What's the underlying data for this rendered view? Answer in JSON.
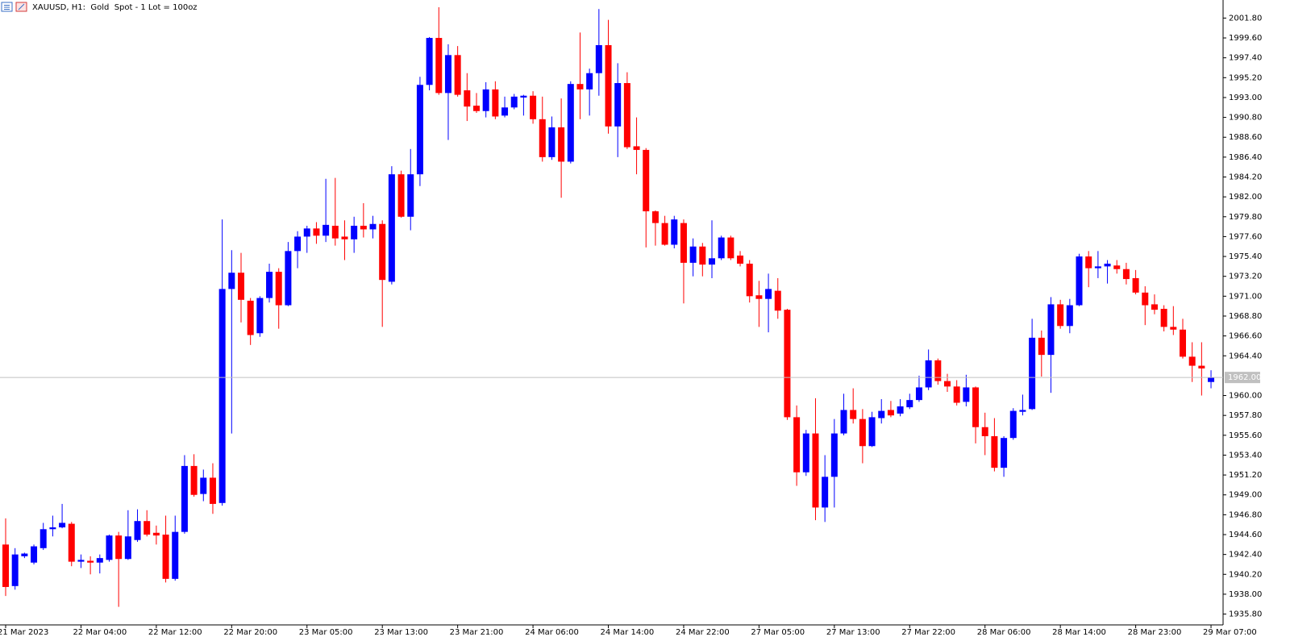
{
  "chart_data": {
    "type": "candlestick",
    "title": "XAUUSD, H1:  Gold  Spot - 1 Lot = 100oz",
    "up_color": "#0000ff",
    "down_color": "#ff0000",
    "grid": false,
    "categories": [
      "21 Mar 2023",
      null,
      null,
      null,
      null,
      null,
      null,
      null,
      "22 Mar 04:00",
      null,
      null,
      null,
      null,
      null,
      null,
      null,
      "22 Mar 12:00",
      null,
      null,
      null,
      null,
      null,
      null,
      null,
      "22 Mar 20:00",
      null,
      null,
      null,
      null,
      null,
      null,
      null,
      "23 Mar 05:00",
      null,
      null,
      null,
      null,
      null,
      null,
      null,
      "23 Mar 13:00",
      null,
      null,
      null,
      null,
      null,
      null,
      null,
      "23 Mar 21:00",
      null,
      null,
      null,
      null,
      null,
      null,
      null,
      "24 Mar 06:00",
      null,
      null,
      null,
      null,
      null,
      null,
      null,
      "24 Mar 14:00",
      null,
      null,
      null,
      null,
      null,
      null,
      null,
      "24 Mar 22:00",
      null,
      null,
      null,
      null,
      null,
      null,
      null,
      "27 Mar 05:00",
      null,
      null,
      null,
      null,
      null,
      null,
      null,
      "27 Mar 13:00",
      null,
      null,
      null,
      null,
      null,
      null,
      null,
      "27 Mar 22:00",
      null,
      null,
      null,
      null,
      null,
      null,
      null,
      "28 Mar 06:00",
      null,
      null,
      null,
      null,
      null,
      null,
      null,
      "28 Mar 14:00",
      null,
      null,
      null,
      null,
      null,
      null,
      null,
      "28 Mar 23:00",
      null,
      null,
      null,
      null,
      null,
      null,
      null,
      "29 Mar 07:00"
    ],
    "open": [
      1943.5,
      1938.9,
      1942.2,
      1941.5,
      1943.1,
      1945.2,
      1945.4,
      1945.8,
      1941.6,
      1941.7,
      1941.5,
      1941.8,
      1944.5,
      1941.9,
      1944.0,
      1946.1,
      1944.8,
      1944.6,
      1939.7,
      1944.9,
      1952.2,
      1949.1,
      1950.9,
      1948.1,
      1971.8,
      1973.6,
      1970.5,
      1966.9,
      1970.8,
      1973.7,
      1970.0,
      1976.0,
      1977.6,
      1978.5,
      1977.7,
      1978.8,
      1977.6,
      1977.3,
      1978.8,
      1978.4,
      1979.0,
      1972.6,
      1984.5,
      1979.8,
      1984.5,
      1994.4,
      1999.6,
      1993.5,
      1997.7,
      1993.8,
      1992.1,
      1991.5,
      1993.9,
      1991.0,
      1991.9,
      1993.0,
      1993.2,
      1990.6,
      1986.4,
      1989.7,
      1985.9,
      1994.5,
      1993.9,
      1995.7,
      1998.8,
      1989.8,
      1994.6,
      1987.6,
      1987.2,
      1980.4,
      1979.1,
      1976.7,
      1979.1,
      1974.7,
      1976.5,
      1974.5,
      1975.2,
      1977.5,
      1975.5,
      1974.6,
      1971.1,
      1970.7,
      1971.6,
      1969.5,
      1957.6,
      1951.5,
      1955.8,
      1947.6,
      1951.0,
      1955.8,
      1958.4,
      1957.4,
      1954.4,
      1957.5,
      1958.4,
      1958.0,
      1958.7,
      1959.5,
      1960.9,
      1963.9,
      1961.6,
      1961.0,
      1959.3,
      1960.9,
      1956.5,
      1955.5,
      1952.0,
      1955.3,
      1958.2,
      1958.5,
      1966.4,
      1964.5,
      1970.1,
      1967.7,
      1970.0,
      1975.4,
      1974.1,
      1974.3,
      1974.4,
      1974.0,
      1973.0,
      1971.4,
      1970.1,
      1969.6,
      1967.6,
      1967.3,
      1964.3,
      1963.3,
      1961.5
    ],
    "close": [
      1938.8,
      1942.4,
      1942.5,
      1943.3,
      1945.2,
      1945.4,
      1945.9,
      1941.6,
      1941.8,
      1941.5,
      1942.0,
      1944.5,
      1941.9,
      1944.4,
      1946.1,
      1944.6,
      1944.5,
      1939.7,
      1944.9,
      1952.2,
      1949.0,
      1950.9,
      1948.0,
      1971.8,
      1973.6,
      1970.6,
      1966.7,
      1970.8,
      1973.7,
      1970.0,
      1976.0,
      1977.6,
      1978.5,
      1977.7,
      1978.9,
      1977.4,
      1977.3,
      1978.8,
      1978.4,
      1979.0,
      1972.8,
      1984.5,
      1979.8,
      1984.5,
      1994.4,
      1999.6,
      1993.5,
      1997.7,
      1993.3,
      1992.0,
      1991.5,
      1993.9,
      1990.9,
      1991.9,
      1993.1,
      1993.2,
      1990.6,
      1986.4,
      1989.7,
      1985.9,
      1994.5,
      1993.9,
      1995.7,
      1998.8,
      1989.8,
      1994.6,
      1987.5,
      1987.2,
      1980.4,
      1979.1,
      1976.7,
      1979.5,
      1974.7,
      1976.5,
      1974.5,
      1975.2,
      1977.5,
      1975.2,
      1974.6,
      1971.0,
      1970.7,
      1971.8,
      1969.4,
      1957.6,
      1951.5,
      1955.8,
      1947.6,
      1951.0,
      1955.8,
      1958.4,
      1957.4,
      1954.4,
      1957.6,
      1958.3,
      1957.8,
      1958.8,
      1959.5,
      1960.9,
      1963.9,
      1961.6,
      1961.0,
      1959.2,
      1960.9,
      1956.5,
      1955.5,
      1952.0,
      1955.3,
      1958.3,
      1958.4,
      1966.4,
      1964.5,
      1970.1,
      1967.7,
      1970.0,
      1975.4,
      1974.1,
      1974.3,
      1974.6,
      1974.0,
      1972.9,
      1971.4,
      1970.0,
      1969.5,
      1967.6,
      1967.3,
      1964.3,
      1963.3,
      1963.0,
      1962.0
    ],
    "high": [
      1946.4,
      1943.1,
      1942.6,
      1943.5,
      1945.9,
      1946.7,
      1948.0,
      1946.0,
      1942.4,
      1942.2,
      1942.4,
      1944.6,
      1944.9,
      1947.3,
      1947.4,
      1947.3,
      1945.6,
      1946.7,
      1946.7,
      1953.4,
      1953.5,
      1951.8,
      1952.5,
      1979.5,
      1976.1,
      1975.8,
      1970.8,
      1971.0,
      1974.6,
      1974.1,
      1977.0,
      1978.2,
      1978.8,
      1979.2,
      1984.0,
      1984.1,
      1979.4,
      1979.8,
      1981.3,
      1979.9,
      1979.4,
      1985.4,
      1984.9,
      1987.3,
      1995.3,
      1999.7,
      2003.0,
      1998.9,
      1998.7,
      1995.7,
      1993.5,
      1994.7,
      1994.8,
      1993.1,
      1993.4,
      1993.3,
      1993.7,
      1993.1,
      1990.9,
      1992.9,
      1994.8,
      2000.2,
      1996.2,
      2002.8,
      2001.6,
      1996.8,
      1995.8,
      1990.8,
      1987.4,
      1980.5,
      1979.9,
      1979.9,
      1979.5,
      1977.4,
      1976.9,
      1979.4,
      1977.7,
      1977.7,
      1976.0,
      1975.0,
      1972.7,
      1973.5,
      1973.0,
      1969.6,
      1958.9,
      1956.2,
      1959.7,
      1953.4,
      1957.4,
      1960.2,
      1960.8,
      1958.5,
      1958.2,
      1959.6,
      1959.4,
      1959.6,
      1960.2,
      1962.2,
      1965.1,
      1964.1,
      1962.4,
      1961.7,
      1962.3,
      1961.0,
      1958.1,
      1957.5,
      1955.5,
      1958.6,
      1960.1,
      1968.5,
      1967.2,
      1970.9,
      1970.6,
      1970.7,
      1975.7,
      1976.0,
      1976.0,
      1975.0,
      1975.0,
      1974.7,
      1973.9,
      1972.1,
      1971.2,
      1970.0,
      1969.9,
      1968.5,
      1965.9,
      1965.9,
      1962.8
    ],
    "low": [
      1937.8,
      1938.5,
      1942.0,
      1941.3,
      1942.9,
      1944.4,
      1945.3,
      1941.1,
      1940.9,
      1940.2,
      1940.3,
      1941.6,
      1936.6,
      1941.8,
      1943.8,
      1944.4,
      1943.5,
      1939.3,
      1939.5,
      1944.7,
      1948.8,
      1948.3,
      1946.9,
      1947.8,
      1955.8,
      1968.1,
      1965.6,
      1966.5,
      1970.3,
      1967.4,
      1969.9,
      1974.1,
      1975.8,
      1976.8,
      1977.0,
      1976.6,
      1975.0,
      1975.8,
      1977.5,
      1977.4,
      1967.6,
      1972.3,
      1979.7,
      1978.3,
      1983.2,
      1993.8,
      1993.3,
      1988.3,
      1993.1,
      1990.4,
      1991.3,
      1990.8,
      1990.6,
      1990.8,
      1991.7,
      1991.0,
      1990.1,
      1985.9,
      1986.1,
      1981.9,
      1985.7,
      1990.6,
      1991.0,
      1993.2,
      1989.0,
      1986.4,
      1987.3,
      1984.5,
      1976.4,
      1976.6,
      1976.6,
      1976.3,
      1970.2,
      1973.2,
      1973.2,
      1973.0,
      1975.0,
      1975.0,
      1974.3,
      1970.3,
      1967.6,
      1967.0,
      1968.5,
      1957.3,
      1950.0,
      1951.1,
      1946.2,
      1946.0,
      1947.6,
      1955.6,
      1956.9,
      1952.5,
      1954.3,
      1956.9,
      1957.6,
      1957.7,
      1958.5,
      1959.3,
      1960.6,
      1961.2,
      1960.4,
      1958.9,
      1958.8,
      1954.7,
      1953.4,
      1951.6,
      1951.0,
      1955.1,
      1957.8,
      1958.4,
      1962.1,
      1960.3,
      1967.4,
      1966.9,
      1969.9,
      1972.0,
      1973.0,
      1972.4,
      1973.5,
      1972.3,
      1971.2,
      1967.8,
      1969.0,
      1967.1,
      1966.7,
      1964.1,
      1961.5,
      1960.0,
      1960.8
    ],
    "current_price": {
      "value": 1962,
      "label": "1962.00"
    },
    "ylim": [
      1934.6,
      2003.8
    ],
    "yticks": [
      {
        "value": 2001.8,
        "label": "2001.80"
      },
      {
        "value": 1999.6,
        "label": "1999.60"
      },
      {
        "value": 1997.4,
        "label": "1997.40"
      },
      {
        "value": 1995.2,
        "label": "1995.20"
      },
      {
        "value": 1993,
        "label": "1993.00"
      },
      {
        "value": 1990.8,
        "label": "1990.80"
      },
      {
        "value": 1988.6,
        "label": "1988.60"
      },
      {
        "value": 1986.4,
        "label": "1986.40"
      },
      {
        "value": 1984.2,
        "label": "1984.20"
      },
      {
        "value": 1982,
        "label": "1982.00"
      },
      {
        "value": 1979.8,
        "label": "1979.80"
      },
      {
        "value": 1977.6,
        "label": "1977.60"
      },
      {
        "value": 1975.4,
        "label": "1975.40"
      },
      {
        "value": 1973.2,
        "label": "1973.20"
      },
      {
        "value": 1971,
        "label": "1971.00"
      },
      {
        "value": 1968.8,
        "label": "1968.80"
      },
      {
        "value": 1966.6,
        "label": "1966.60"
      },
      {
        "value": 1964.4,
        "label": "1964.40"
      },
      {
        "value": 1960,
        "label": "1960.00"
      },
      {
        "value": 1957.8,
        "label": "1957.80"
      },
      {
        "value": 1955.6,
        "label": "1955.60"
      },
      {
        "value": 1953.4,
        "label": "1953.40"
      },
      {
        "value": 1951.2,
        "label": "1951.20"
      },
      {
        "value": 1949,
        "label": "1949.00"
      },
      {
        "value": 1946.8,
        "label": "1946.80"
      },
      {
        "value": 1944.6,
        "label": "1944.60"
      },
      {
        "value": 1942.4,
        "label": "1942.40"
      },
      {
        "value": 1940.2,
        "label": "1940.20"
      },
      {
        "value": 1938,
        "label": "1938.00"
      },
      {
        "value": 1935.8,
        "label": "1935.80"
      }
    ]
  }
}
